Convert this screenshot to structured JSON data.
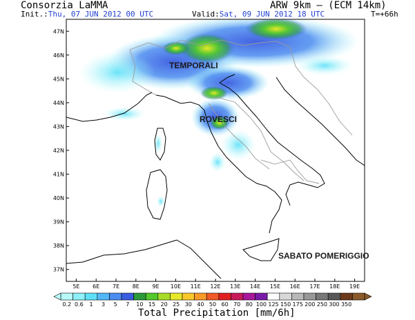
{
  "header": {
    "org": "Consorzia LaMMA",
    "model": "ARW 9km — (ECM 14km)",
    "init_label": "Init.:",
    "init_value": "Thu, 07 JUN 2012   00 UTC",
    "valid_label": "Valid:",
    "valid_value": "Sat, 09 JUN 2012   18 UTC",
    "lead_time": "T=+66h"
  },
  "map": {
    "lon_ticks": [
      "5E",
      "6E",
      "7E",
      "8E",
      "9E",
      "10E",
      "11E",
      "12E",
      "13E",
      "14E",
      "15E",
      "16E",
      "17E",
      "18E",
      "19E"
    ],
    "lat_ticks": [
      "47N",
      "46N",
      "45N",
      "44N",
      "43N",
      "42N",
      "41N",
      "40N",
      "39N",
      "38N",
      "37N"
    ],
    "lon_range": [
      4.5,
      19.5
    ],
    "lat_range": [
      36.5,
      47.5
    ],
    "labels": {
      "storms": "TEMPORALI",
      "showers": "ROVESCI",
      "period": "SABATO POMERIGGIO"
    },
    "colors": {
      "land": "#ffffff",
      "border": "#9a9a9a",
      "coast": "#000000"
    }
  },
  "colorbar": {
    "title": "Total Precipitation [mm/6h]",
    "ticks": [
      "0.2",
      "0.6",
      "1",
      "3",
      "5",
      "7",
      "10",
      "15",
      "20",
      "25",
      "30",
      "40",
      "50",
      "60",
      "70",
      "80",
      "100",
      "125",
      "150",
      "175",
      "200",
      "250",
      "300",
      "350"
    ],
    "colors": [
      "#b8fafa",
      "#8ef0f8",
      "#5ee0f8",
      "#52b8f8",
      "#4a8cf0",
      "#3a5ce0",
      "#2a9a3a",
      "#54c82c",
      "#a8dc28",
      "#e6e828",
      "#f8c828",
      "#f89a28",
      "#f05a28",
      "#e02020",
      "#c81a5a",
      "#a8189a",
      "#7a1aa8",
      "#ffffff",
      "#d8d8d8",
      "#b8b8b8",
      "#989898",
      "#787878",
      "#585858",
      "#6a3a1a",
      "#8a5a2a"
    ]
  }
}
